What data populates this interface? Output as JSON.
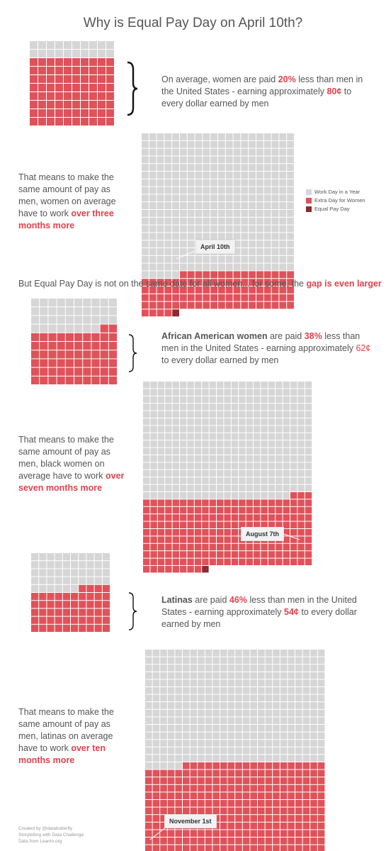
{
  "title": "Why is Equal Pay Day on April 10th?",
  "colors": {
    "work_day": "#d6d6d6",
    "extra_day": "#e0525a",
    "equal_pay_day": "#8c2a2f",
    "accent": "#e0424c"
  },
  "legend": [
    {
      "label": "Work Day in a Year",
      "color": "#d6d6d6"
    },
    {
      "label": "Extra Day for Women",
      "color": "#e0525a"
    },
    {
      "label": "Equal Pay Day",
      "color": "#8c2a2f"
    }
  ],
  "section1": {
    "stat_pre": "On average, women are paid ",
    "pct": "20%",
    "stat_mid": " less than men in the United States - earning approximately ",
    "cents": "80¢",
    "stat_post": " to every dollar earned by men",
    "means_pre": "That means to make the same amount of pay as men, women on average have to work ",
    "means_em": "over three months more",
    "callout": "April 10th"
  },
  "bridge": {
    "pre": "But Equal Pay Day is not on the same date for all women... for some, the ",
    "em": "gap is even larger"
  },
  "section2": {
    "group": "African American women",
    "stat_pre": " are paid ",
    "pct": "38%",
    "stat_mid": " less than men in the United States - earning approximately ",
    "cents": "62¢",
    "stat_post": " to every dollar earned by men",
    "means_pre": "That means to make the same amount of pay as men, black women on average have to work ",
    "means_em": "over seven months more",
    "callout": "August 7th"
  },
  "section3": {
    "group": "Latinas",
    "stat_pre": " are paid ",
    "pct": "46%",
    "stat_mid": " less than men in the United States - earning approximately ",
    "cents": "54¢",
    "stat_post": " to every dollar earned by men",
    "means_pre": "That means to make the same amount of pay as men, latinas on average have to work ",
    "means_em": "over ten months more",
    "callout": "November 1st"
  },
  "footer": [
    "Created by @databutterfly",
    "Storytelling with Data Challenge",
    "Data from LeanIn.org"
  ],
  "chart_data": [
    {
      "type": "waffle",
      "name": "dollar-20",
      "cells": 100,
      "pay_cells": 80,
      "gap_cells": 20
    },
    {
      "type": "waffle",
      "name": "year-women",
      "work_days": 365,
      "extra_days": 100,
      "equal_pay_day": "April 10th"
    },
    {
      "type": "waffle",
      "name": "dollar-38",
      "cells": 100,
      "pay_cells": 62,
      "gap_cells": 38
    },
    {
      "type": "waffle",
      "name": "year-black-women",
      "work_days": 365,
      "extra_days": 219,
      "equal_pay_day": "August 7th"
    },
    {
      "type": "waffle",
      "name": "dollar-46",
      "cells": 100,
      "pay_cells": 54,
      "gap_cells": 46
    },
    {
      "type": "waffle",
      "name": "year-latinas",
      "work_days": 365,
      "extra_days": 305,
      "equal_pay_day": "November 1st"
    }
  ]
}
